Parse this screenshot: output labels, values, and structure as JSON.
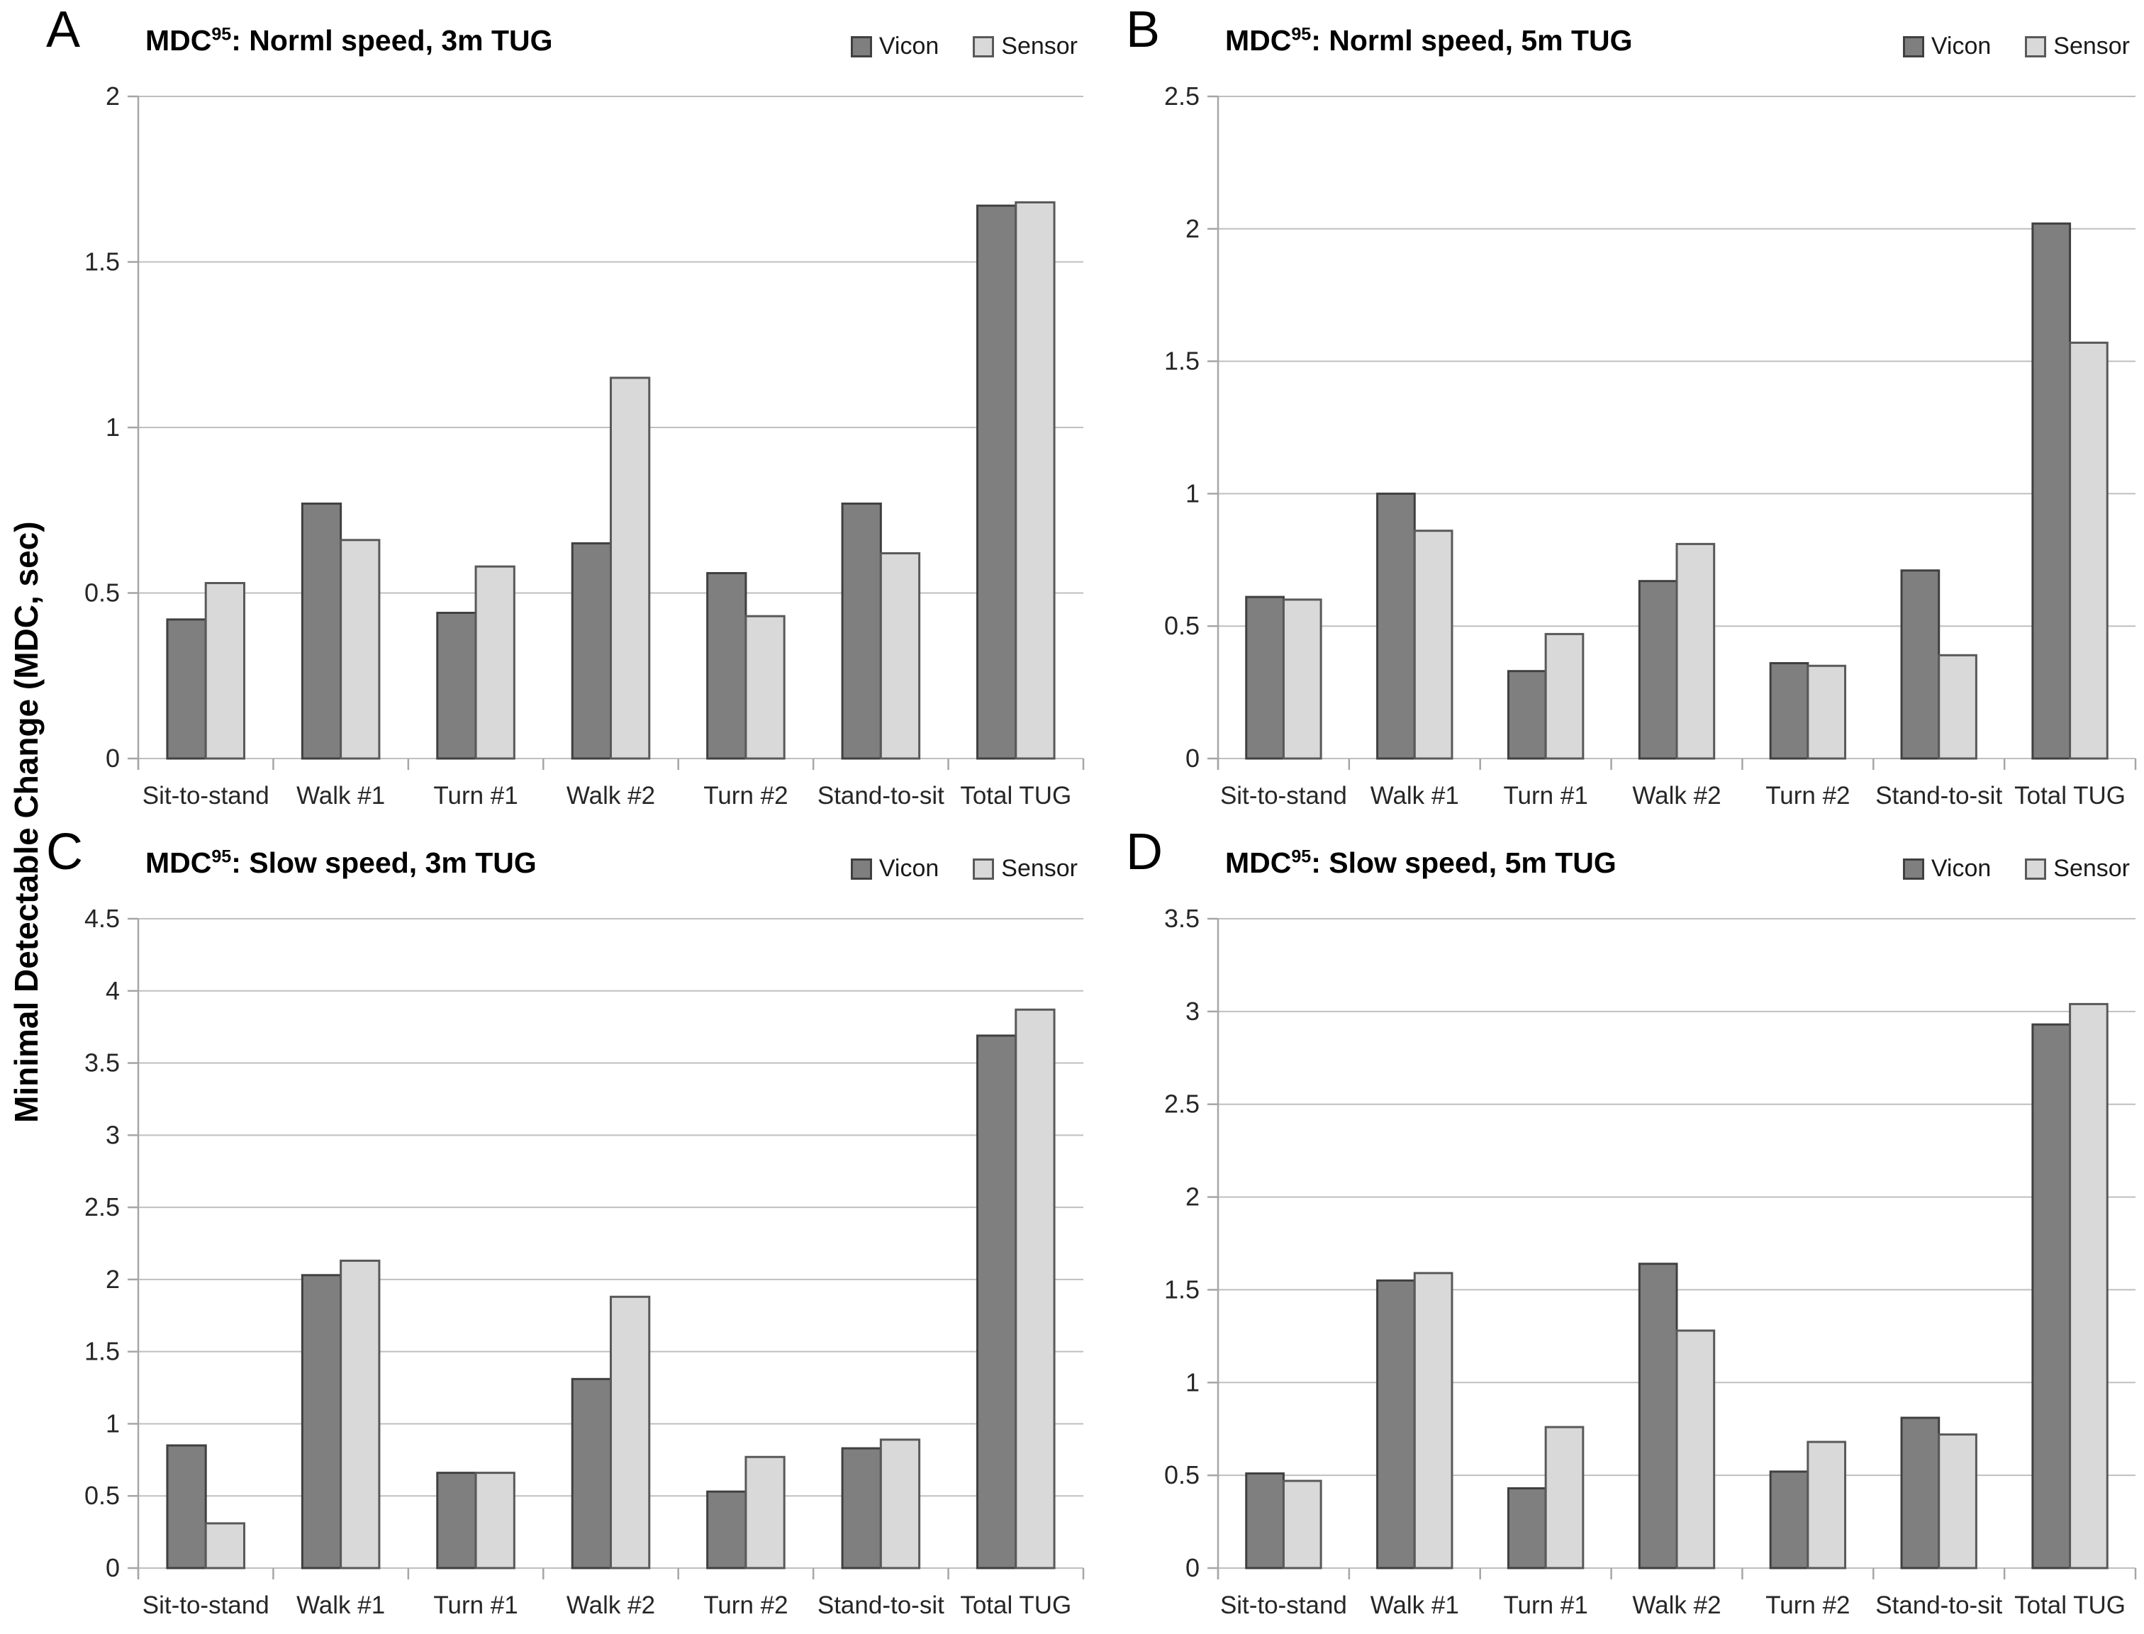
{
  "figure": {
    "y_axis_label": "Minimal Detectable Change (MDC, sec)",
    "legend": {
      "vicon": "Vicon",
      "sensor": "Sensor"
    },
    "colors": {
      "vicon_fill": "#7f7f7f",
      "vicon_border": "#404040",
      "sensor_fill": "#d9d9d9",
      "sensor_border": "#595959",
      "gridline": "#bfbfbf",
      "axis": "#a6a6a6",
      "text": "#262626",
      "background": "#ffffff"
    }
  },
  "chart_data": [
    {
      "type": "bar",
      "panel_letter": "A",
      "title_prefix": "MDC",
      "title_superscript": "95",
      "title_rest": ": Norml speed, 3m TUG",
      "categories": [
        "Sit-to-stand",
        "Walk #1",
        "Turn #1",
        "Walk #2",
        "Turn #2",
        "Stand-to-sit",
        "Total TUG"
      ],
      "series": [
        {
          "name": "Vicon",
          "values": [
            0.42,
            0.77,
            0.44,
            0.65,
            0.56,
            0.77,
            1.67
          ]
        },
        {
          "name": "Sensor",
          "values": [
            0.53,
            0.66,
            0.58,
            1.15,
            0.43,
            0.62,
            1.68
          ]
        }
      ],
      "ylim": [
        0,
        2
      ],
      "yticks": [
        "0",
        "0.5",
        "1",
        "1.5",
        "2"
      ],
      "xlabel": "",
      "ylabel": "",
      "grid": true,
      "legend_position": "top-right"
    },
    {
      "type": "bar",
      "panel_letter": "B",
      "title_prefix": "MDC",
      "title_superscript": "95",
      "title_rest": ": Norml speed, 5m TUG",
      "categories": [
        "Sit-to-stand",
        "Walk #1",
        "Turn #1",
        "Walk #2",
        "Turn #2",
        "Stand-to-sit",
        "Total TUG"
      ],
      "series": [
        {
          "name": "Vicon",
          "values": [
            0.61,
            1.0,
            0.33,
            0.67,
            0.36,
            0.71,
            2.02
          ]
        },
        {
          "name": "Sensor",
          "values": [
            0.6,
            0.86,
            0.47,
            0.81,
            0.35,
            0.39,
            1.57
          ]
        }
      ],
      "ylim": [
        0,
        2.5
      ],
      "yticks": [
        "0",
        "0.5",
        "1",
        "1.5",
        "2",
        "2.5"
      ],
      "xlabel": "",
      "ylabel": "",
      "grid": true,
      "legend_position": "top-right"
    },
    {
      "type": "bar",
      "panel_letter": "C",
      "title_prefix": "MDC",
      "title_superscript": "95",
      "title_rest": ": Slow speed, 3m TUG",
      "categories": [
        "Sit-to-stand",
        "Walk #1",
        "Turn #1",
        "Walk #2",
        "Turn #2",
        "Stand-to-sit",
        "Total TUG"
      ],
      "series": [
        {
          "name": "Vicon",
          "values": [
            0.85,
            2.03,
            0.66,
            1.31,
            0.53,
            0.83,
            3.69
          ]
        },
        {
          "name": "Sensor",
          "values": [
            0.31,
            2.13,
            0.66,
            1.88,
            0.77,
            0.89,
            3.87
          ]
        }
      ],
      "ylim": [
        0,
        4.5
      ],
      "yticks": [
        "0",
        "0.5",
        "1",
        "1.5",
        "2",
        "2.5",
        "3",
        "3.5",
        "4",
        "4.5"
      ],
      "xlabel": "",
      "ylabel": "",
      "grid": true,
      "legend_position": "top-right"
    },
    {
      "type": "bar",
      "panel_letter": "D",
      "title_prefix": "MDC",
      "title_superscript": "95",
      "title_rest": ": Slow speed, 5m TUG",
      "categories": [
        "Sit-to-stand",
        "Walk #1",
        "Turn #1",
        "Walk #2",
        "Turn #2",
        "Stand-to-sit",
        "Total TUG"
      ],
      "series": [
        {
          "name": "Vicon",
          "values": [
            0.51,
            1.55,
            0.43,
            1.64,
            0.52,
            0.81,
            2.93
          ]
        },
        {
          "name": "Sensor",
          "values": [
            0.47,
            1.59,
            0.76,
            1.28,
            0.68,
            0.72,
            3.04
          ]
        }
      ],
      "ylim": [
        0,
        3.5
      ],
      "yticks": [
        "0",
        "0.5",
        "1",
        "1.5",
        "2",
        "2.5",
        "3",
        "3.5"
      ],
      "xlabel": "",
      "ylabel": "",
      "grid": true,
      "legend_position": "top-right"
    }
  ]
}
